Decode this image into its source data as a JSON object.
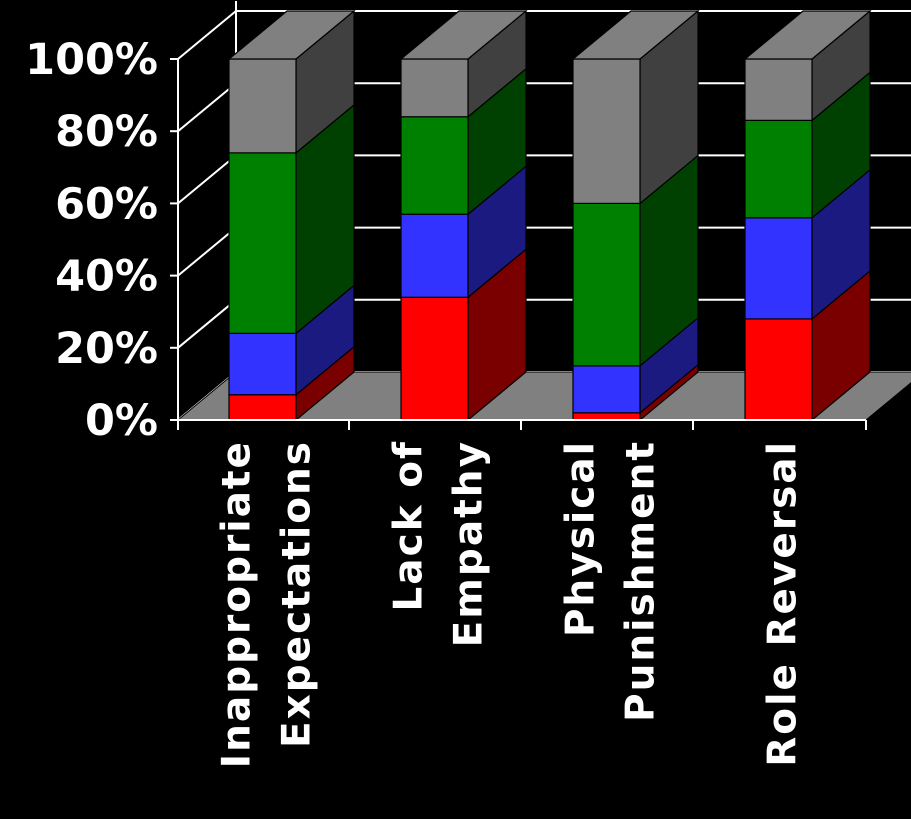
{
  "chart_data": {
    "type": "bar",
    "stacked": true,
    "three_d": true,
    "percent_stacked": true,
    "categories": [
      [
        "Inappropriate",
        "Expectations"
      ],
      [
        "Lack of",
        "Empathy"
      ],
      [
        "Physical",
        "Punishment"
      ],
      [
        "Role Reversal"
      ]
    ],
    "series": [
      {
        "color": "#ff0000",
        "side_color": "#7a0000",
        "values": [
          7,
          34,
          2,
          28
        ]
      },
      {
        "color": "#3333ff",
        "side_color": "#1a1a80",
        "values": [
          17,
          23,
          13,
          28
        ]
      },
      {
        "color": "#008000",
        "side_color": "#004000",
        "values": [
          50,
          27,
          45,
          27
        ]
      },
      {
        "color": "#808080",
        "side_color": "#404040",
        "values": [
          26,
          16,
          40,
          17
        ]
      }
    ],
    "y_ticks": [
      "0%",
      "20%",
      "40%",
      "60%",
      "80%",
      "100%"
    ],
    "ylim": [
      0,
      100
    ],
    "grid": true,
    "floor_color": "#808080",
    "background_color": "#000000"
  }
}
